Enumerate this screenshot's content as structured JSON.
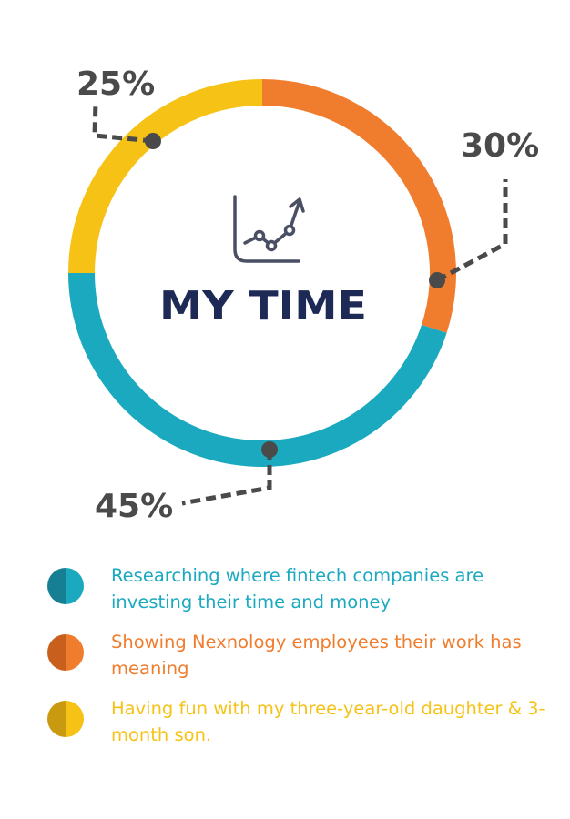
{
  "chart_data": {
    "type": "pie",
    "title": "MY TIME",
    "categories": [
      "Researching where fintech companies are investing their time and money",
      "Showing Nexnology employees their work has meaning",
      "Having fun with my three-year-old daughter & 3-month son."
    ],
    "values": [
      45,
      30,
      25
    ],
    "value_labels": [
      "45%",
      "30%",
      "25%"
    ],
    "colors": [
      "#1ba9bf",
      "#f07d2e",
      "#f6c216"
    ],
    "shaded_colors": [
      "#167f93",
      "#c85f1c",
      "#c99a10"
    ],
    "legend_placement": "bottom"
  },
  "colors": {
    "title": "#1d2a55",
    "label": "#4a4a4a",
    "leader": "#4a4a4a",
    "icon": "#4a4f63"
  },
  "icons": {
    "center": "line-chart-icon"
  }
}
